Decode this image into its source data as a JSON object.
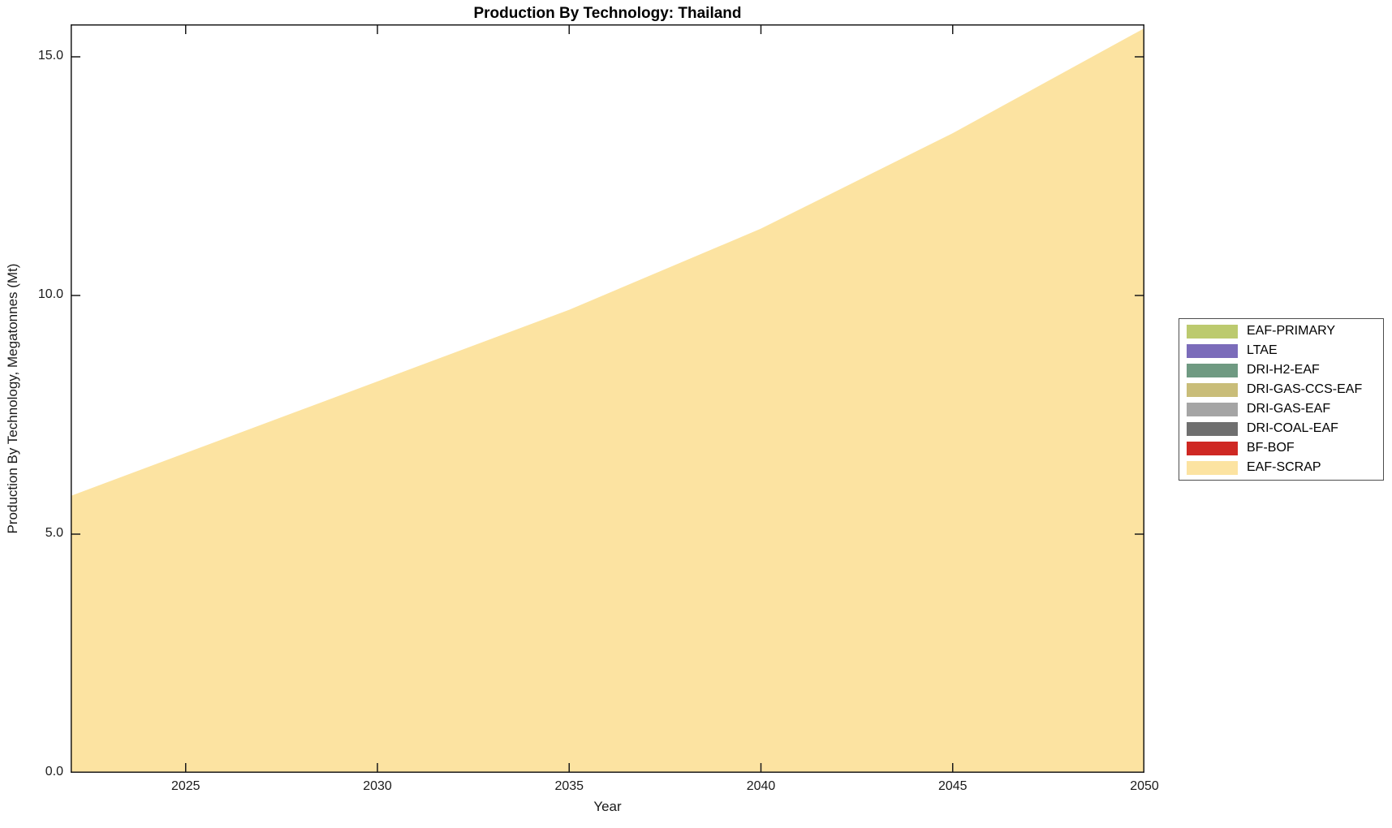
{
  "title": "Production By Technology: Thailand",
  "axes": {
    "x_label": "Year",
    "y_label": "Production By Technology, Megatonnes (Mt)",
    "x_tick_labels": [
      "2025",
      "2030",
      "2035",
      "2040",
      "2045",
      "2050"
    ],
    "y_tick_labels": [
      "0.0",
      "5.0",
      "10.0",
      "15.0"
    ]
  },
  "colors": {
    "axis": "#1a1a1a",
    "background": "#ffffff",
    "legend_border": "#4d4d4d"
  },
  "chart_data": {
    "type": "area",
    "stacked": true,
    "title": "Production By Technology: Thailand",
    "xlabel": "Year",
    "ylabel": "Production By Technology, Megatonnes (Mt)",
    "grid": false,
    "legend_position": "right-outside",
    "x": [
      2022,
      2025,
      2030,
      2035,
      2040,
      2045,
      2050
    ],
    "xlim": [
      2022,
      2050
    ],
    "ylim": [
      0,
      15.68
    ],
    "x_ticks": [
      2025,
      2030,
      2035,
      2040,
      2045,
      2050
    ],
    "y_ticks": [
      0,
      5,
      10,
      15
    ],
    "series": [
      {
        "name": "EAF-PRIMARY",
        "color": "#bcca6e",
        "values": [
          0,
          0,
          0,
          0,
          0,
          0,
          0
        ]
      },
      {
        "name": "LTAE",
        "color": "#7b6cba",
        "values": [
          0,
          0,
          0,
          0,
          0,
          0,
          0
        ]
      },
      {
        "name": "DRI-H2-EAF",
        "color": "#6f9a82",
        "values": [
          0,
          0,
          0,
          0,
          0,
          0,
          0
        ]
      },
      {
        "name": "DRI-GAS-CCS-EAF",
        "color": "#c9bd79",
        "values": [
          0,
          0,
          0,
          0,
          0,
          0,
          0
        ]
      },
      {
        "name": "DRI-GAS-EAF",
        "color": "#a5a5a5",
        "values": [
          0,
          0,
          0,
          0,
          0,
          0,
          0
        ]
      },
      {
        "name": "DRI-COAL-EAF",
        "color": "#6f6f6f",
        "values": [
          0,
          0,
          0,
          0,
          0,
          0,
          0
        ]
      },
      {
        "name": "BF-BOF",
        "color": "#cf2823",
        "values": [
          0,
          0,
          0,
          0,
          0,
          0,
          0
        ]
      },
      {
        "name": "EAF-SCRAP",
        "color": "#fce3a1",
        "values": [
          5.8,
          6.7,
          8.2,
          9.7,
          11.4,
          13.4,
          15.6
        ]
      }
    ]
  }
}
